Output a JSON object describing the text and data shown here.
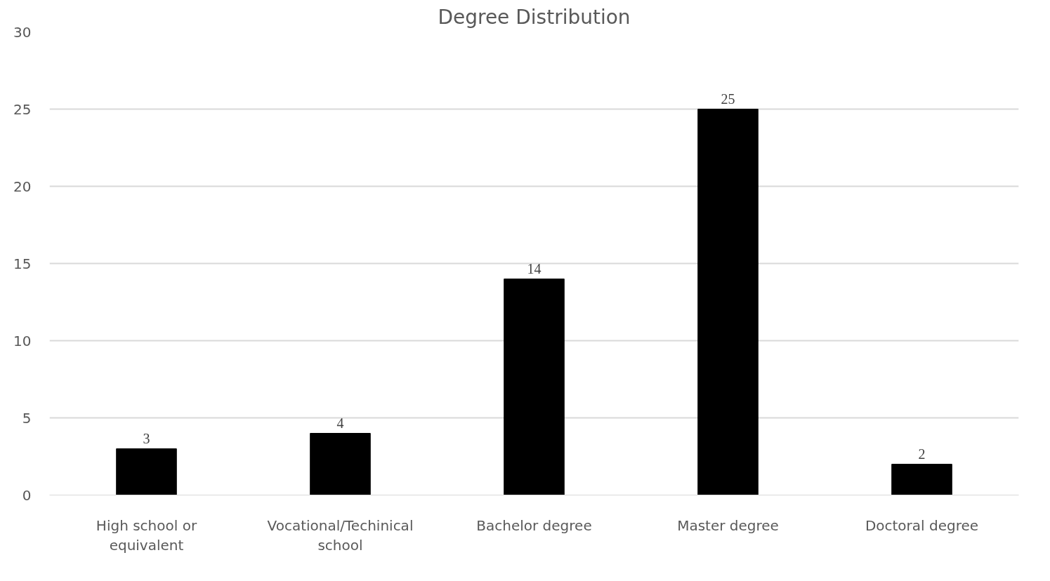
{
  "chart_data": {
    "type": "bar",
    "title": "Degree Distribution",
    "categories": [
      "High school or equivalent",
      "Vocational/Techinical school",
      "Bachelor degree",
      "Master degree",
      "Doctoral degree"
    ],
    "values": [
      3,
      4,
      14,
      25,
      2
    ],
    "color": "#000000",
    "ylim": [
      0,
      30
    ],
    "yticks": [
      0,
      5,
      10,
      15,
      20,
      25,
      30
    ],
    "grid": "y",
    "data_labels": true
  }
}
